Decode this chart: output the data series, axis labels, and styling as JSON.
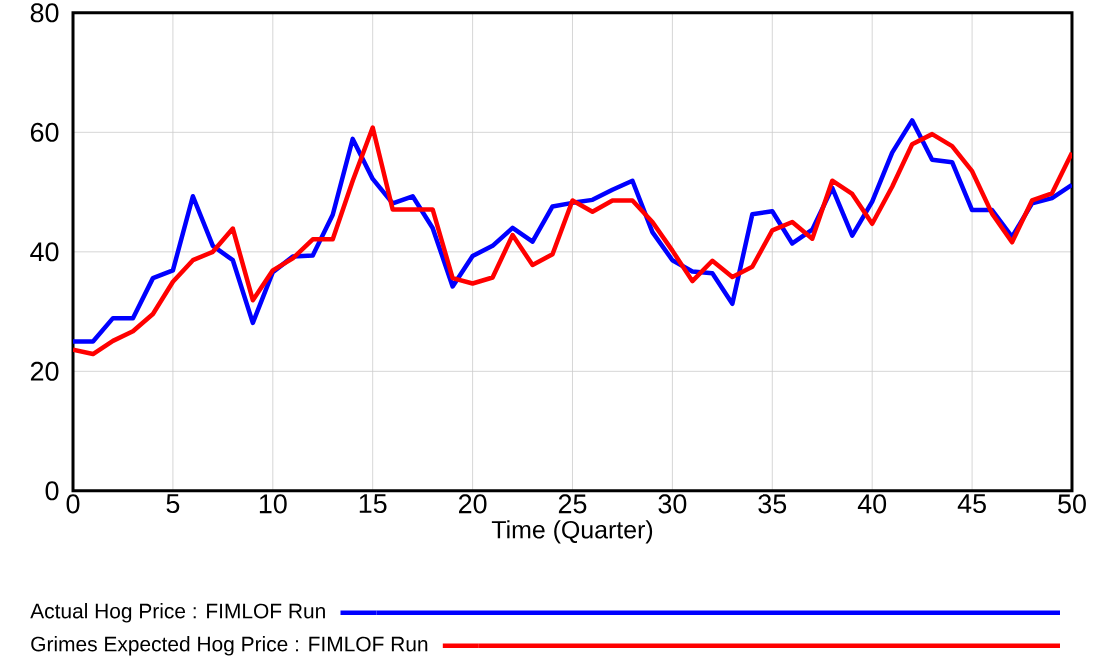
{
  "chart_data": {
    "type": "line",
    "xlabel": "Time (Quarter)",
    "x": [
      0,
      1,
      2,
      3,
      4,
      5,
      6,
      7,
      8,
      9,
      10,
      11,
      12,
      13,
      14,
      15,
      16,
      17,
      18,
      19,
      20,
      21,
      22,
      23,
      24,
      25,
      26,
      27,
      28,
      29,
      30,
      31,
      32,
      33,
      34,
      35,
      36,
      37,
      38,
      39,
      40,
      41,
      42,
      43,
      44,
      45,
      46,
      47,
      48,
      49,
      50
    ],
    "series": [
      {
        "name": "Actual Hog Price : FIMLOF Run",
        "color": "#0000ff",
        "values": [
          25.0,
          25.0,
          28.9,
          28.9,
          35.6,
          36.9,
          49.3,
          41.0,
          38.6,
          28.1,
          36.6,
          39.2,
          39.4,
          46.2,
          58.9,
          52.2,
          48.1,
          49.3,
          44.0,
          34.2,
          39.3,
          41.0,
          44.0,
          41.7,
          47.6,
          48.2,
          48.7,
          50.4,
          51.9,
          43.3,
          38.6,
          36.7,
          36.4,
          31.3,
          46.3,
          46.8,
          41.4,
          43.7,
          50.7,
          42.7,
          48.4,
          56.6,
          62.0,
          55.4,
          55.0,
          47.0,
          47.0,
          42.5,
          48.1,
          49.0,
          51.2
        ]
      },
      {
        "name": "Grimes Expected Hog Price : FIMLOF Run",
        "color": "#ff0000",
        "values": [
          23.6,
          22.9,
          25.1,
          26.7,
          29.6,
          35.0,
          38.6,
          40.0,
          43.9,
          31.9,
          36.9,
          38.9,
          42.1,
          42.1,
          51.9,
          60.8,
          47.1,
          47.1,
          47.1,
          35.6,
          34.7,
          35.7,
          42.8,
          37.8,
          39.6,
          48.6,
          46.7,
          48.6,
          48.6,
          45.0,
          40.2,
          35.1,
          38.5,
          35.8,
          37.5,
          43.6,
          45.0,
          42.2,
          51.9,
          49.7,
          44.7,
          50.9,
          58.0,
          59.7,
          57.7,
          53.5,
          46.4,
          41.6,
          48.6,
          49.8,
          56.6
        ]
      }
    ],
    "xlim": [
      0,
      50
    ],
    "xticks": [
      0,
      5,
      10,
      15,
      20,
      25,
      30,
      35,
      40,
      45,
      50
    ],
    "ylim": [
      0,
      80
    ],
    "yticks": [
      0,
      20,
      40,
      60,
      80
    ],
    "grid": true,
    "legend": "bottom",
    "marker": "none",
    "line_style": "solid"
  }
}
